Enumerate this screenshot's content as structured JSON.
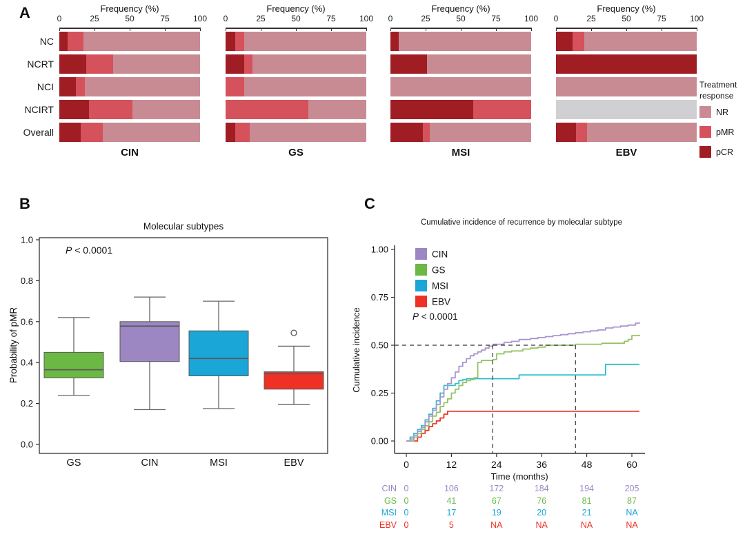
{
  "figure": {
    "panel_labels": [
      "A",
      "B",
      "C"
    ],
    "background": "#ffffff"
  },
  "chart_data": [
    {
      "panel": "A",
      "type": "bar",
      "orientation": "horizontal-stacked",
      "axis_title": "Frequency (%)",
      "ticks": [
        0,
        25,
        50,
        75,
        100
      ],
      "xlim": [
        0,
        100
      ],
      "row_labels": [
        "NC",
        "NCRT",
        "NCI",
        "NCIRT",
        "Overall"
      ],
      "segment_order": [
        "pCR",
        "pMR",
        "NR",
        "NA"
      ],
      "colors": {
        "pCR": "#a01d24",
        "pMR": "#d5515c",
        "NR": "#c98b93",
        "NA": "#d0d0d2"
      },
      "legend": {
        "title": "Treatment response",
        "items": [
          {
            "label": "NR",
            "color": "#c98b93"
          },
          {
            "label": "pMR",
            "color": "#d5515c"
          },
          {
            "label": "pCR",
            "color": "#a01d24"
          }
        ]
      },
      "charts": [
        {
          "subtype": "CIN",
          "rows": [
            {
              "pCR": 6,
              "pMR": 11,
              "NR": 83,
              "NA": 0
            },
            {
              "pCR": 19,
              "pMR": 19,
              "NR": 62,
              "NA": 0
            },
            {
              "pCR": 12,
              "pMR": 6,
              "NR": 82,
              "NA": 0
            },
            {
              "pCR": 21,
              "pMR": 31,
              "NR": 48,
              "NA": 0
            },
            {
              "pCR": 15,
              "pMR": 16,
              "NR": 69,
              "NA": 0
            }
          ]
        },
        {
          "subtype": "GS",
          "rows": [
            {
              "pCR": 7,
              "pMR": 6,
              "NR": 87,
              "NA": 0
            },
            {
              "pCR": 13,
              "pMR": 6,
              "NR": 81,
              "NA": 0
            },
            {
              "pCR": 0,
              "pMR": 13,
              "NR": 87,
              "NA": 0
            },
            {
              "pCR": 0,
              "pMR": 59,
              "NR": 41,
              "NA": 0
            },
            {
              "pCR": 7,
              "pMR": 10,
              "NR": 83,
              "NA": 0
            }
          ]
        },
        {
          "subtype": "MSI",
          "rows": [
            {
              "pCR": 6,
              "pMR": 0,
              "NR": 94,
              "NA": 0
            },
            {
              "pCR": 26,
              "pMR": 0,
              "NR": 74,
              "NA": 0
            },
            {
              "pCR": 0,
              "pMR": 0,
              "NR": 100,
              "NA": 0
            },
            {
              "pCR": 59,
              "pMR": 41,
              "NR": 0,
              "NA": 0
            },
            {
              "pCR": 23,
              "pMR": 5,
              "NR": 72,
              "NA": 0
            }
          ]
        },
        {
          "subtype": "EBV",
          "rows": [
            {
              "pCR": 12,
              "pMR": 8,
              "NR": 80,
              "NA": 0
            },
            {
              "pCR": 100,
              "pMR": 0,
              "NR": 0,
              "NA": 0
            },
            {
              "pCR": 0,
              "pMR": 0,
              "NR": 100,
              "NA": 0
            },
            {
              "pCR": 0,
              "pMR": 0,
              "NR": 0,
              "NA": 100
            },
            {
              "pCR": 14,
              "pMR": 8,
              "NR": 78,
              "NA": 0
            }
          ]
        }
      ]
    },
    {
      "panel": "B",
      "type": "box",
      "title": "Molecular subtypes",
      "p_value": "P < 0.0001",
      "ylabel": "Probability of pMR",
      "yticks": [
        0.0,
        0.2,
        0.4,
        0.6,
        0.8,
        1.0
      ],
      "ylim": [
        0,
        1
      ],
      "boxes": [
        {
          "name": "GS",
          "color": "#6cb845",
          "whisker_low": 0.24,
          "q1": 0.325,
          "median": 0.365,
          "q3": 0.45,
          "whisker_high": 0.62,
          "outliers": []
        },
        {
          "name": "CIN",
          "color": "#9c87c3",
          "whisker_low": 0.17,
          "q1": 0.405,
          "median": 0.578,
          "q3": 0.6,
          "whisker_high": 0.72,
          "outliers": []
        },
        {
          "name": "MSI",
          "color": "#1ba6d8",
          "whisker_low": 0.175,
          "q1": 0.335,
          "median": 0.42,
          "q3": 0.555,
          "whisker_high": 0.7,
          "outliers": []
        },
        {
          "name": "EBV",
          "color": "#ee3124",
          "whisker_low": 0.195,
          "q1": 0.27,
          "median": 0.345,
          "q3": 0.355,
          "whisker_high": 0.48,
          "outliers": [
            0.545
          ]
        }
      ]
    },
    {
      "panel": "C",
      "type": "line",
      "subtype_style": "step",
      "title": "Cumulative incidence of recurrence by molecular subtype",
      "ylabel": "Cumulative incidence",
      "xlabel": "Time (months)",
      "p_value": "P < 0.0001",
      "yticks": [
        {
          "v": 0,
          "label": "0.00"
        },
        {
          "v": 0.25,
          "label": "0.25"
        },
        {
          "v": 0.5,
          "label": "0.50"
        },
        {
          "v": 0.75,
          "label": "0.75"
        },
        {
          "v": 1,
          "label": "1.00"
        }
      ],
      "xticks": [
        0,
        12,
        24,
        36,
        48,
        60
      ],
      "xlim": [
        0,
        62
      ],
      "ylim": [
        0,
        1
      ],
      "reference_lines": {
        "horizontal_y": 0.5,
        "vertical_x": [
          23,
          45
        ]
      },
      "series": [
        {
          "name": "CIN",
          "color": "#9c87c3",
          "line_color": "#a995cd",
          "points": [
            [
              0,
              0
            ],
            [
              1,
              0.01
            ],
            [
              2,
              0.03
            ],
            [
              3,
              0.05
            ],
            [
              4,
              0.07
            ],
            [
              5,
              0.1
            ],
            [
              6,
              0.13
            ],
            [
              7,
              0.16
            ],
            [
              8,
              0.19
            ],
            [
              9,
              0.23
            ],
            [
              10,
              0.27
            ],
            [
              11,
              0.3
            ],
            [
              12,
              0.33
            ],
            [
              13,
              0.36
            ],
            [
              14,
              0.39
            ],
            [
              15,
              0.41
            ],
            [
              16,
              0.43
            ],
            [
              17,
              0.445
            ],
            [
              18,
              0.455
            ],
            [
              19,
              0.465
            ],
            [
              20,
              0.475
            ],
            [
              21,
              0.485
            ],
            [
              22,
              0.495
            ],
            [
              23,
              0.505
            ],
            [
              26,
              0.515
            ],
            [
              28,
              0.52
            ],
            [
              30,
              0.53
            ],
            [
              33,
              0.535
            ],
            [
              35,
              0.54
            ],
            [
              37,
              0.545
            ],
            [
              39,
              0.55
            ],
            [
              41,
              0.555
            ],
            [
              43,
              0.56
            ],
            [
              45,
              0.565
            ],
            [
              47,
              0.57
            ],
            [
              49,
              0.575
            ],
            [
              51,
              0.58
            ],
            [
              53,
              0.59
            ],
            [
              55,
              0.595
            ],
            [
              57,
              0.6
            ],
            [
              59,
              0.605
            ],
            [
              61,
              0.615
            ],
            [
              62,
              0.62
            ]
          ]
        },
        {
          "name": "GS",
          "color": "#6cb845",
          "line_color": "#93c464",
          "points": [
            [
              0,
              0
            ],
            [
              2,
              0.02
            ],
            [
              3,
              0.04
            ],
            [
              4,
              0.06
            ],
            [
              5,
              0.08
            ],
            [
              6,
              0.1
            ],
            [
              7,
              0.13
            ],
            [
              8,
              0.15
            ],
            [
              9,
              0.18
            ],
            [
              10,
              0.2
            ],
            [
              11,
              0.22
            ],
            [
              12,
              0.25
            ],
            [
              13,
              0.27
            ],
            [
              14,
              0.29
            ],
            [
              15,
              0.305
            ],
            [
              16,
              0.315
            ],
            [
              17,
              0.32
            ],
            [
              18,
              0.33
            ],
            [
              19,
              0.41
            ],
            [
              20,
              0.42
            ],
            [
              23,
              0.425
            ],
            [
              24,
              0.455
            ],
            [
              26,
              0.465
            ],
            [
              28,
              0.47
            ],
            [
              31,
              0.48
            ],
            [
              33,
              0.485
            ],
            [
              35,
              0.49
            ],
            [
              37,
              0.5
            ],
            [
              45,
              0.505
            ],
            [
              52,
              0.51
            ],
            [
              58,
              0.52
            ],
            [
              59,
              0.53
            ],
            [
              60,
              0.55
            ],
            [
              62,
              0.555
            ]
          ]
        },
        {
          "name": "MSI",
          "color": "#1ba6d8",
          "line_color": "#2fbecd",
          "points": [
            [
              0,
              0
            ],
            [
              1,
              0.02
            ],
            [
              2,
              0.04
            ],
            [
              3,
              0.06
            ],
            [
              4,
              0.08
            ],
            [
              5,
              0.11
            ],
            [
              6,
              0.14
            ],
            [
              7,
              0.17
            ],
            [
              8,
              0.21
            ],
            [
              9,
              0.25
            ],
            [
              10,
              0.29
            ],
            [
              13,
              0.3
            ],
            [
              14,
              0.315
            ],
            [
              15,
              0.32
            ],
            [
              16,
              0.325
            ],
            [
              30,
              0.345
            ],
            [
              53,
              0.4
            ],
            [
              62,
              0.4
            ]
          ]
        },
        {
          "name": "EBV",
          "color": "#ee3124",
          "line_color": "#e8392b",
          "points": [
            [
              0,
              0
            ],
            [
              3,
              0.02
            ],
            [
              4,
              0.04
            ],
            [
              5,
              0.055
            ],
            [
              6,
              0.075
            ],
            [
              7,
              0.09
            ],
            [
              8,
              0.105
            ],
            [
              9,
              0.12
            ],
            [
              10,
              0.14
            ],
            [
              11,
              0.155
            ],
            [
              62,
              0.155
            ]
          ]
        }
      ],
      "risk_table": {
        "times": [
          0,
          12,
          24,
          36,
          48,
          60
        ],
        "rows": [
          {
            "name": "CIN",
            "color": "#9c87c3",
            "values": [
              "0",
              "106",
              "172",
              "184",
              "194",
              "205"
            ]
          },
          {
            "name": "GS",
            "color": "#6cb845",
            "values": [
              "0",
              "41",
              "67",
              "76",
              "81",
              "87"
            ]
          },
          {
            "name": "MSI",
            "color": "#1ba6d8",
            "values": [
              "0",
              "17",
              "19",
              "20",
              "21",
              "NA"
            ]
          },
          {
            "name": "EBV",
            "color": "#ee3124",
            "values": [
              "0",
              "5",
              "NA",
              "NA",
              "NA",
              "NA"
            ]
          }
        ]
      }
    }
  ]
}
